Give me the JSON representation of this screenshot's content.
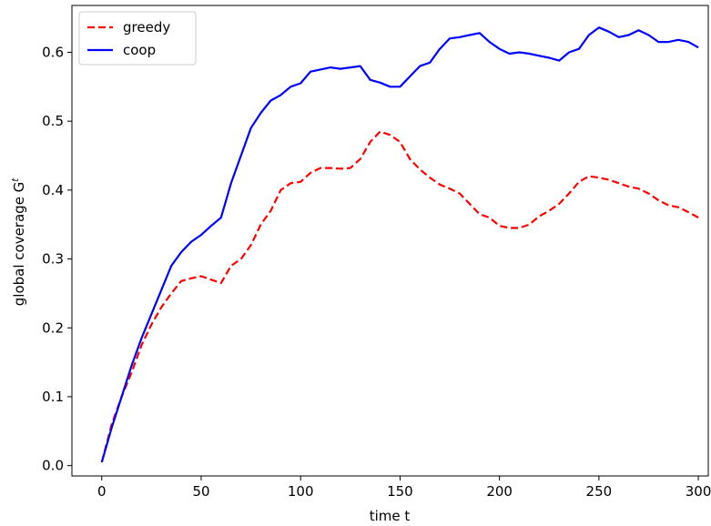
{
  "chart_data": {
    "type": "line",
    "xlabel": "time t",
    "ylabel": "global coverage G",
    "ylabel_superscript": "t",
    "xlim": [
      -15,
      305
    ],
    "ylim": [
      -0.015,
      0.668
    ],
    "xticks": [
      0,
      50,
      100,
      150,
      200,
      250,
      300
    ],
    "xtick_labels": [
      "0",
      "50",
      "100",
      "150",
      "200",
      "250",
      "300"
    ],
    "yticks": [
      0.0,
      0.1,
      0.2,
      0.3,
      0.4,
      0.5,
      0.6
    ],
    "ytick_labels": [
      "0.0",
      "0.1",
      "0.2",
      "0.3",
      "0.4",
      "0.5",
      "0.6"
    ],
    "grid": false,
    "legend_position": "upper-left",
    "series": [
      {
        "name": "greedy",
        "color": "#ff0000",
        "dash": "dashed",
        "x": [
          0,
          5,
          10,
          15,
          20,
          25,
          30,
          35,
          40,
          45,
          50,
          55,
          60,
          65,
          70,
          75,
          80,
          85,
          90,
          95,
          100,
          105,
          110,
          115,
          120,
          125,
          130,
          135,
          140,
          145,
          150,
          155,
          160,
          165,
          170,
          175,
          180,
          185,
          190,
          195,
          200,
          205,
          210,
          215,
          220,
          225,
          230,
          235,
          240,
          245,
          250,
          255,
          260,
          265,
          270,
          275,
          280,
          285,
          290,
          295,
          300
        ],
        "y": [
          0.005,
          0.06,
          0.1,
          0.135,
          0.175,
          0.205,
          0.23,
          0.25,
          0.268,
          0.272,
          0.275,
          0.27,
          0.265,
          0.29,
          0.3,
          0.32,
          0.35,
          0.37,
          0.4,
          0.41,
          0.412,
          0.425,
          0.432,
          0.432,
          0.431,
          0.432,
          0.445,
          0.47,
          0.485,
          0.48,
          0.47,
          0.445,
          0.43,
          0.418,
          0.408,
          0.402,
          0.395,
          0.38,
          0.365,
          0.36,
          0.348,
          0.345,
          0.345,
          0.35,
          0.362,
          0.37,
          0.38,
          0.395,
          0.412,
          0.42,
          0.418,
          0.415,
          0.41,
          0.405,
          0.402,
          0.395,
          0.385,
          0.378,
          0.375,
          0.368,
          0.36
        ]
      },
      {
        "name": "coop",
        "color": "#0000ff",
        "dash": "solid",
        "x": [
          0,
          5,
          10,
          15,
          20,
          25,
          30,
          35,
          40,
          45,
          50,
          55,
          60,
          65,
          70,
          75,
          80,
          85,
          90,
          95,
          100,
          105,
          110,
          115,
          120,
          125,
          130,
          135,
          140,
          145,
          150,
          155,
          160,
          165,
          170,
          175,
          180,
          185,
          190,
          195,
          200,
          205,
          210,
          215,
          220,
          225,
          230,
          235,
          240,
          245,
          250,
          255,
          260,
          265,
          270,
          275,
          280,
          285,
          290,
          295,
          300
        ],
        "y": [
          0.005,
          0.055,
          0.1,
          0.145,
          0.185,
          0.22,
          0.255,
          0.29,
          0.31,
          0.325,
          0.335,
          0.348,
          0.36,
          0.41,
          0.45,
          0.49,
          0.512,
          0.53,
          0.538,
          0.55,
          0.555,
          0.572,
          0.575,
          0.578,
          0.576,
          0.578,
          0.58,
          0.56,
          0.556,
          0.55,
          0.55,
          0.565,
          0.58,
          0.585,
          0.605,
          0.62,
          0.622,
          0.625,
          0.628,
          0.615,
          0.605,
          0.598,
          0.6,
          0.598,
          0.595,
          0.592,
          0.588,
          0.6,
          0.605,
          0.625,
          0.636,
          0.63,
          0.622,
          0.625,
          0.632,
          0.625,
          0.615,
          0.615,
          0.618,
          0.615,
          0.607
        ]
      }
    ]
  }
}
